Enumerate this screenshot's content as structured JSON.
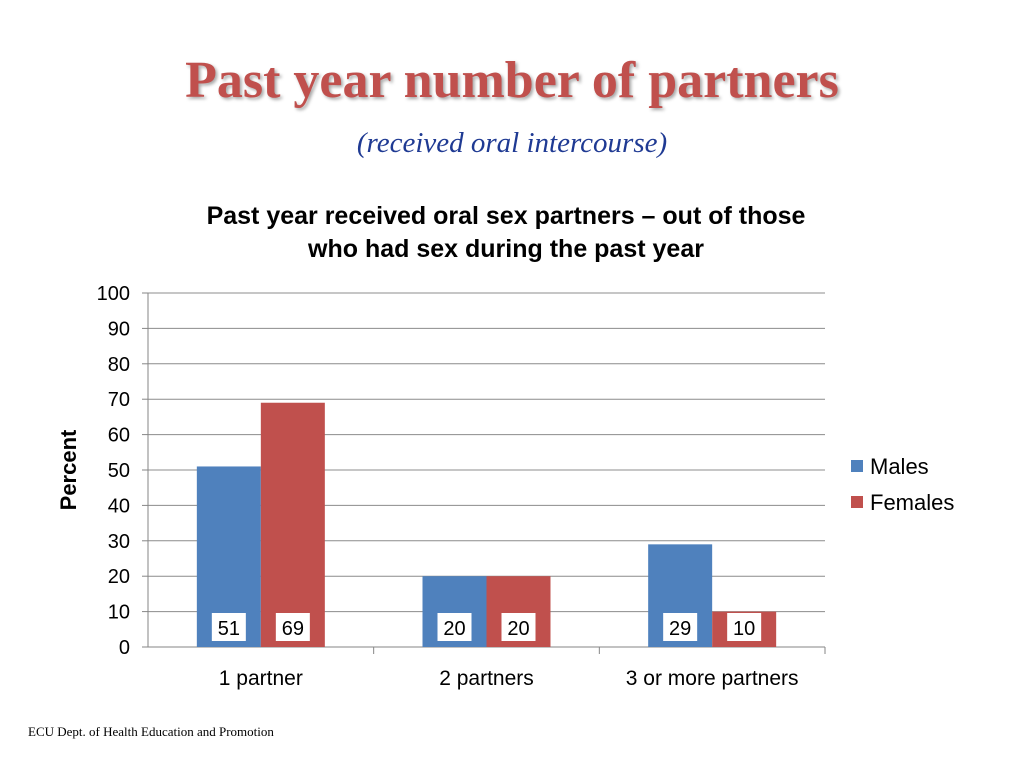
{
  "slide": {
    "title": "Past year number of partners",
    "subtitle": "(received oral intercourse)",
    "footer": "ECU Dept. of Health Education and Promotion"
  },
  "chart_data": {
    "type": "bar",
    "title_lines": [
      "Past year received oral sex partners – out of those",
      "who had sex during the past year"
    ],
    "xlabel": "",
    "ylabel": "Percent",
    "ylim": [
      0,
      100
    ],
    "yticks": [
      "0",
      "10",
      "20",
      "30",
      "40",
      "50",
      "60",
      "70",
      "80",
      "90",
      "100"
    ],
    "categories": [
      "1 partner",
      "2 partners",
      "3 or more partners"
    ],
    "series": [
      {
        "name": "Males",
        "values": [
          51,
          20,
          29
        ],
        "labels": [
          "51",
          "20",
          "29"
        ],
        "color": "#4f81bd"
      },
      {
        "name": "Females",
        "values": [
          69,
          20,
          10
        ],
        "labels": [
          "69",
          "20",
          "10"
        ],
        "color": "#c0504d"
      }
    ],
    "grid": true,
    "legend": "right"
  }
}
